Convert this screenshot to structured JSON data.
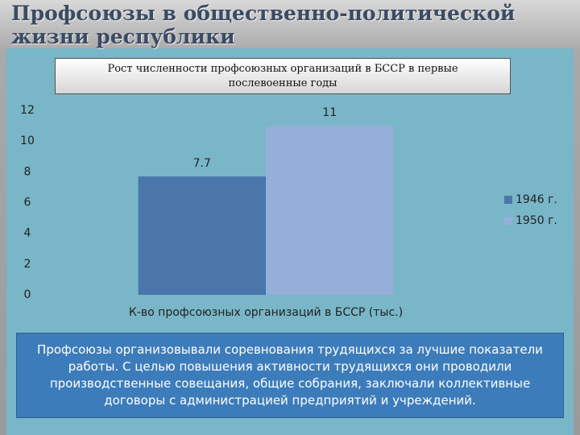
{
  "slide": {
    "title": "Профсоюзы в общественно-политической жизни республики",
    "text": "Профсоюзы организовывали соревнования трудящихся за лучшие показатели работы. С целью повышения активности трудящихся они проводили производственные совещания, общие собрания, заключали коллективные договоры с администрацией предприятий и учреждений."
  },
  "chart_data": {
    "type": "bar",
    "title": "Рост численности профсоюзных организаций в БССР в первые послевоенные годы",
    "categories": [
      "К-во профсоюзных организаций в БССР (тыс.)"
    ],
    "series": [
      {
        "name": "1946 г.",
        "color": "#4a76aa",
        "values": [
          7.7
        ]
      },
      {
        "name": "1950 г.",
        "color": "#95afd8",
        "values": [
          11
        ]
      }
    ],
    "ylim": [
      0,
      12
    ],
    "yticks": [
      0,
      2,
      4,
      6,
      8,
      10,
      12
    ],
    "grid": false,
    "legend": "right"
  }
}
